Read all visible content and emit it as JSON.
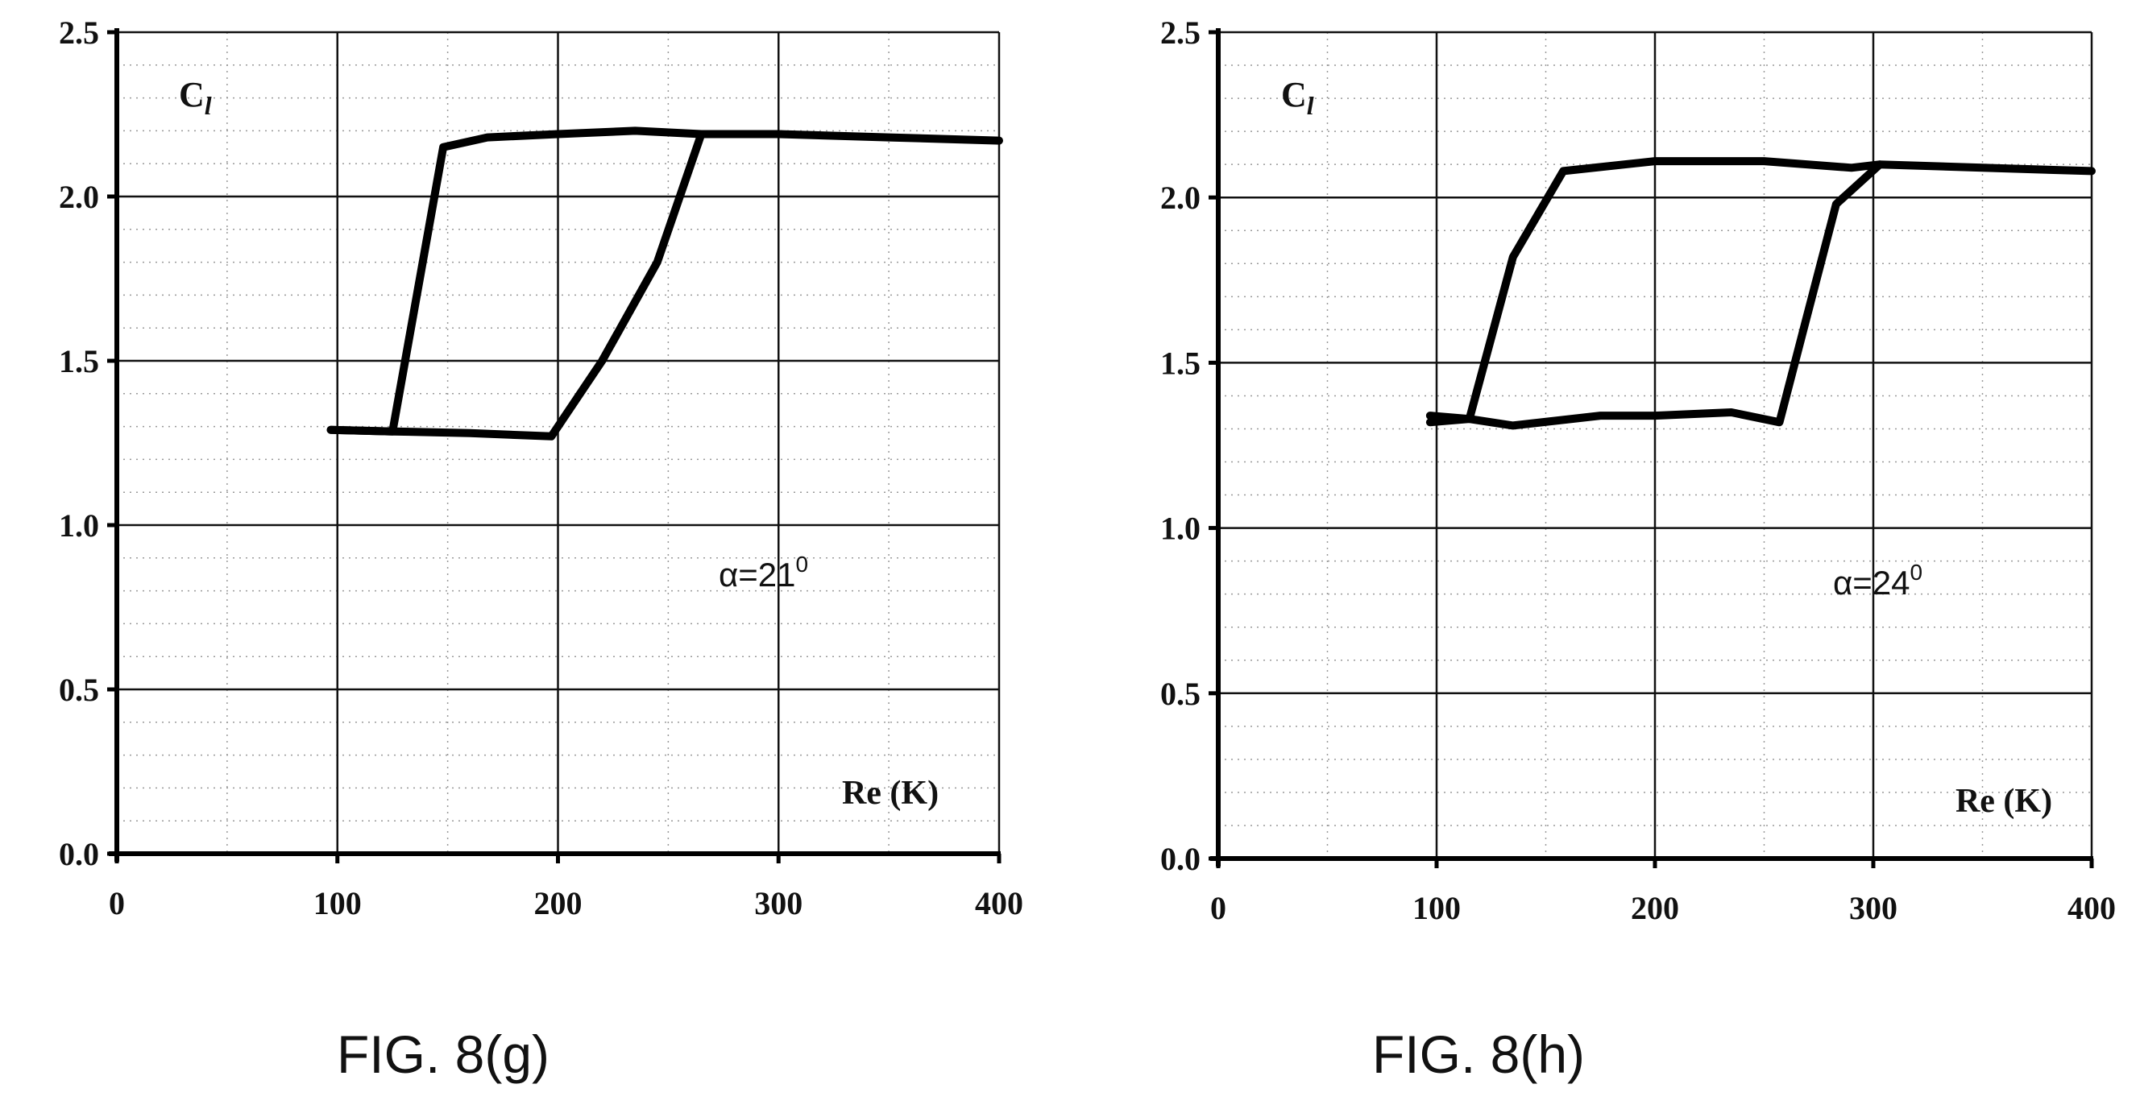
{
  "figures": [
    {
      "caption": "FIG. 8(g)",
      "annotation": "α=21",
      "annotation_sup": "0",
      "chart_data": {
        "type": "line",
        "ylabel_main": "C",
        "ylabel_sub": "l",
        "xlabel": "Re (K)",
        "xlim": [
          0,
          400
        ],
        "ylim": [
          0,
          2.5
        ],
        "x_ticks": [
          "0",
          "100",
          "200",
          "300",
          "400"
        ],
        "y_ticks": [
          "0.0",
          "0.5",
          "1.0",
          "1.5",
          "2.0",
          "2.5"
        ],
        "grid": true,
        "series": [
          {
            "values": [
              [
                97,
                1.29
              ],
              [
                125,
                1.285
              ],
              [
                148,
                2.15
              ],
              [
                168,
                2.18
              ],
              [
                200,
                2.19
              ],
              [
                235,
                2.2
              ],
              [
                265,
                2.19
              ],
              [
                300,
                2.19
              ],
              [
                350,
                2.18
              ],
              [
                400,
                2.17
              ]
            ]
          },
          {
            "values": [
              [
                97,
                1.29
              ],
              [
                125,
                1.285
              ],
              [
                160,
                1.28
              ],
              [
                197,
                1.27
              ],
              [
                220,
                1.5
              ],
              [
                245,
                1.8
              ],
              [
                265,
                2.19
              ]
            ]
          }
        ]
      }
    },
    {
      "caption": "FIG. 8(h)",
      "annotation": "α=24",
      "annotation_sup": "0",
      "chart_data": {
        "type": "line",
        "ylabel_main": "C",
        "ylabel_sub": "l",
        "xlabel": "Re (K)",
        "xlim": [
          0,
          400
        ],
        "ylim": [
          0,
          2.5
        ],
        "x_ticks": [
          "0",
          "100",
          "200",
          "300",
          "400"
        ],
        "y_ticks": [
          "0.0",
          "0.5",
          "1.0",
          "1.5",
          "2.0",
          "2.5"
        ],
        "grid": true,
        "series": [
          {
            "values": [
              [
                97,
                1.34
              ],
              [
                115,
                1.33
              ],
              [
                135,
                1.82
              ],
              [
                158,
                2.08
              ],
              [
                200,
                2.11
              ],
              [
                250,
                2.11
              ],
              [
                290,
                2.09
              ],
              [
                303,
                2.1
              ],
              [
                350,
                2.09
              ],
              [
                400,
                2.08
              ]
            ]
          },
          {
            "values": [
              [
                97,
                1.32
              ],
              [
                115,
                1.33
              ],
              [
                135,
                1.31
              ],
              [
                175,
                1.34
              ],
              [
                200,
                1.34
              ],
              [
                235,
                1.35
              ],
              [
                257,
                1.32
              ],
              [
                268,
                1.6
              ],
              [
                283,
                1.98
              ],
              [
                303,
                2.1
              ]
            ]
          }
        ]
      }
    }
  ]
}
